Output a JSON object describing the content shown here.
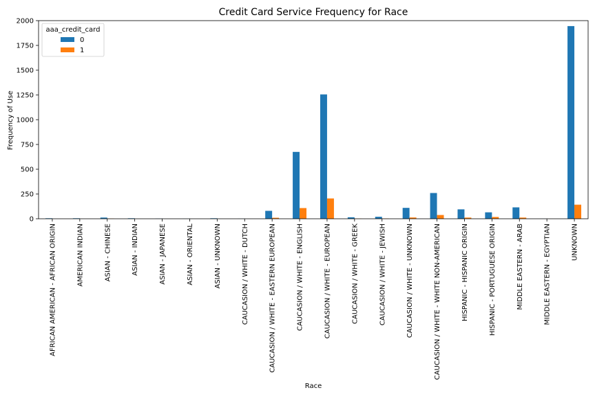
{
  "chart_data": {
    "type": "bar",
    "title": "Credit Card Service Frequency for Race",
    "xlabel": "Race",
    "ylabel": "Frequency of Use",
    "ylim": [
      0,
      2000
    ],
    "yticks": [
      0,
      250,
      500,
      750,
      1000,
      1250,
      1500,
      1750,
      2000
    ],
    "grid": false,
    "legend": {
      "title": "aaa_credit_card",
      "placement": "top-left"
    },
    "categories": [
      "AFRICAN AMERICAN - AFRICAN ORIGIN",
      "AMERICAN INDIAN",
      "ASIAN - CHINESE",
      "ASIAN - INDIAN",
      "ASIAN - JAPANESE",
      "ASIAN - ORIENTAL",
      "ASIAN - UNKNOWN",
      "CAUCASION / WHITE - DUTCH",
      "CAUCASION / WHITE - EASTERN EUROPEAN",
      "CAUCASION / WHITE - ENGLISH",
      "CAUCASION / WHITE - EUROPEAN",
      "CAUCASION / WHITE - GREEK",
      "CAUCASION / WHITE - JEWISH",
      "CAUCASION / WHITE - UNKNOWN",
      "CAUCASION / WHITE - WHITE NON-AMERICAN",
      "HISPANIC - HISPANIC ORIGIN",
      "HISPANIC - PORTUGUESE ORIGIN",
      "MIDDLE EASTERN - ARAB",
      "MIDDLE EASTERN - EGYPTIAN",
      "UNKNOWN"
    ],
    "series": [
      {
        "name": "0",
        "color": "#1f77b4",
        "values": [
          5,
          5,
          12,
          5,
          2,
          1,
          5,
          1,
          80,
          675,
          1255,
          15,
          20,
          110,
          260,
          95,
          65,
          115,
          1,
          1945
        ]
      },
      {
        "name": "1",
        "color": "#ff7f0e",
        "values": [
          0,
          0,
          2,
          0,
          0,
          0,
          0,
          0,
          10,
          108,
          205,
          2,
          3,
          13,
          38,
          12,
          18,
          12,
          0,
          142
        ]
      }
    ]
  }
}
